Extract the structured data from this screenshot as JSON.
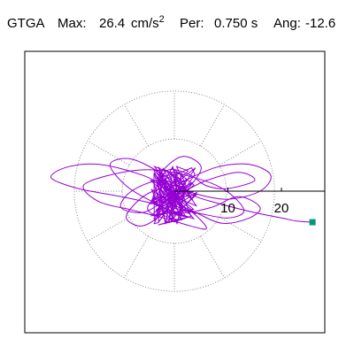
{
  "header": {
    "station": "GTGA",
    "max_label": "Max:",
    "max_value": "26.4",
    "max_unit": "cm/s",
    "max_exp": "2",
    "per_label": "Per:",
    "per_value": "0.750 s",
    "ang_label": "Ang:",
    "ang_value": "-12.6"
  },
  "colors": {
    "trace": "#9400d3",
    "marker": "#00997a",
    "frame": "#000000",
    "grid": "#888888"
  },
  "chart_data": {
    "type": "scatter",
    "subtype": "polar-particle-motion",
    "title": "",
    "xlabel": "",
    "ylabel": "",
    "rings": [
      10,
      20
    ],
    "radial_tick_labels": [
      "10",
      "20"
    ],
    "grid_rings": [
      10,
      20
    ],
    "spoke_angles_deg": [
      0,
      30,
      60,
      90,
      120,
      150,
      180,
      210,
      240,
      270,
      300,
      330
    ],
    "grid": true,
    "xlim": [
      -26.4,
      26.4
    ],
    "ylim": [
      -26.4,
      26.4
    ],
    "max_amplitude": 26.4,
    "period_s": 0.75,
    "angle_deg": -12.6,
    "end_point": {
      "x": 25.8,
      "y": -5.8
    },
    "trace_outline": [
      [
        0,
        0
      ],
      [
        -6,
        3
      ],
      [
        -14,
        5
      ],
      [
        -20,
        4.5
      ],
      [
        -23,
        2.5
      ],
      [
        -18,
        0.5
      ],
      [
        -10,
        -1
      ],
      [
        -3,
        -2.5
      ],
      [
        4,
        -4
      ],
      [
        10,
        -5
      ],
      [
        13,
        -3.5
      ],
      [
        9,
        0.5
      ],
      [
        2,
        3
      ],
      [
        -5,
        4
      ],
      [
        -12,
        3
      ],
      [
        -17,
        1
      ],
      [
        -14,
        -2
      ],
      [
        -8,
        -3.5
      ],
      [
        -2,
        -5
      ],
      [
        3,
        -6.5
      ],
      [
        6,
        -7
      ],
      [
        4,
        -4.5
      ],
      [
        0,
        -1.5
      ],
      [
        -3,
        2
      ],
      [
        -1,
        5
      ],
      [
        2,
        6.5
      ],
      [
        5,
        4.5
      ],
      [
        3,
        1
      ],
      [
        0,
        -2
      ],
      [
        -3,
        -4.5
      ],
      [
        -5,
        -3
      ],
      [
        -2,
        0
      ],
      [
        2,
        2
      ],
      [
        8,
        4.5
      ],
      [
        14,
        5
      ],
      [
        18,
        3
      ],
      [
        16,
        0
      ],
      [
        10,
        -1.5
      ],
      [
        4,
        -0.5
      ],
      [
        0,
        1
      ],
      [
        -4,
        0
      ],
      [
        -7,
        -2
      ],
      [
        -9,
        -5
      ],
      [
        -6,
        -6.5
      ],
      [
        -2,
        -4
      ],
      [
        1,
        0
      ],
      [
        -2,
        3
      ],
      [
        -8,
        6
      ],
      [
        -12,
        5
      ],
      [
        -9,
        1
      ],
      [
        -4,
        -2
      ],
      [
        1,
        -4
      ],
      [
        7,
        -3
      ],
      [
        12,
        -1
      ],
      [
        16,
        -3
      ],
      [
        14,
        -5
      ],
      [
        9,
        -6
      ],
      [
        4,
        -4
      ],
      [
        0,
        -2
      ],
      [
        -3,
        1
      ],
      [
        -1,
        4
      ],
      [
        3,
        3
      ],
      [
        6,
        1
      ],
      [
        10,
        0.5
      ],
      [
        15,
        2
      ],
      [
        12,
        3.5
      ],
      [
        6,
        2
      ],
      [
        2,
        0
      ],
      [
        -2,
        -2
      ],
      [
        -6,
        -4
      ],
      [
        -10,
        -3
      ],
      [
        -8,
        0
      ],
      [
        -3,
        2
      ],
      [
        1,
        1
      ],
      [
        4,
        -1
      ],
      [
        9,
        -2.5
      ],
      [
        15,
        -4
      ],
      [
        20,
        -5
      ],
      [
        23,
        -5.6
      ],
      [
        25.8,
        -5.8
      ]
    ]
  }
}
